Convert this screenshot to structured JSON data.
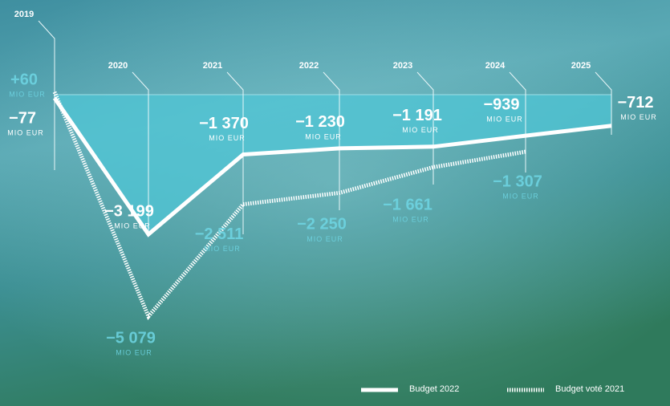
{
  "chart_data": {
    "type": "line",
    "categories": [
      "2019",
      "2020",
      "2021",
      "2022",
      "2023",
      "2024",
      "2025"
    ],
    "unit": "MIO EUR",
    "ylim": [
      -5500,
      300
    ],
    "series": [
      {
        "name": "Budget 2022",
        "color": "#ffffff",
        "style": "solid",
        "values": [
          -77,
          -3199,
          -1370,
          -1230,
          -1191,
          -939,
          -712
        ],
        "value_labels": [
          "−77",
          "−3 199",
          "−1 370",
          "−1 230",
          "−1 191",
          "−939",
          "−712"
        ]
      },
      {
        "name": "Budget voté 2021",
        "color": "#ffffff",
        "style": "dotted",
        "values": [
          60,
          -5079,
          -2511,
          -2250,
          -1661,
          -1307,
          null
        ],
        "value_labels": [
          "+60",
          "−5 079",
          "−2 511",
          "−2 250",
          "−1 661",
          "−1 307",
          null
        ]
      }
    ]
  }
}
